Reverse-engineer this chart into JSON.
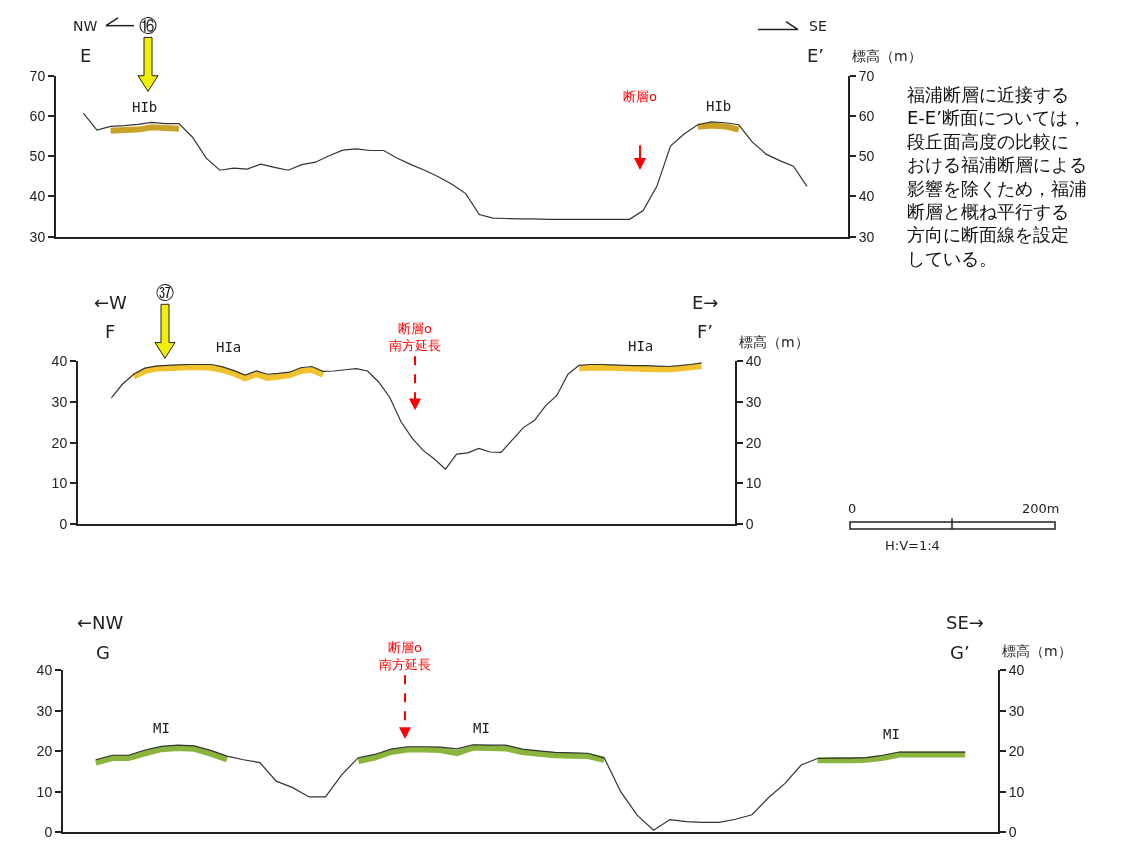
{
  "chart_data": [
    {
      "type": "line",
      "categories": [
        null,
        null,
        null,
        null,
        null,
        null,
        null,
        null,
        null,
        null,
        null,
        null,
        null,
        null,
        null,
        null,
        null,
        null,
        null,
        null,
        null,
        null,
        null,
        null,
        null,
        null,
        null,
        null,
        null,
        null,
        null,
        null,
        null,
        null,
        null,
        null,
        null,
        null,
        null,
        null,
        null,
        null,
        null,
        null,
        null,
        null,
        null,
        null,
        null,
        null,
        null,
        null,
        null,
        null,
        null,
        null,
        null,
        null,
        null
      ],
      "series": [
        {
          "color": "#333333",
          "values": [
            null,
            null,
            60.7,
            56.5,
            57.4,
            57.6,
            57.9,
            58.4,
            58.1,
            58.1,
            54.7,
            49.5,
            46.5,
            47.0,
            46.8,
            48.0,
            47.2,
            46.5,
            47.9,
            48.5,
            50.1,
            51.5,
            51.8,
            51.4,
            51.4,
            49.5,
            47.9,
            46.5,
            44.9,
            43.0,
            40.7,
            35.5,
            34.6,
            34.5,
            34.4,
            34.4,
            34.3,
            34.3,
            34.3,
            34.3,
            34.3,
            34.3,
            34.3,
            36.5,
            42.5,
            52.5,
            55.5,
            57.8,
            58.5,
            58.3,
            57.8,
            53.5,
            50.5,
            48.9,
            47.5,
            42.5,
            null,
            null,
            null
          ]
        },
        {
          "color": "#c9a227",
          "values": [
            null,
            null,
            null,
            null,
            56.3,
            56.5,
            56.6,
            57.2,
            57.0,
            56.8,
            null,
            null,
            null,
            null,
            null,
            null,
            null,
            null,
            null,
            null,
            null,
            null,
            null,
            null,
            null,
            null,
            null,
            null,
            null,
            null,
            null,
            null,
            null,
            null,
            null,
            null,
            null,
            null,
            null,
            null,
            null,
            null,
            null,
            null,
            null,
            null,
            null,
            57.3,
            57.6,
            57.4,
            56.6,
            null,
            null,
            null,
            null,
            null,
            null,
            null,
            null
          ]
        }
      ],
      "ylim": [
        30,
        70
      ],
      "yticks": [
        30,
        40,
        50,
        60,
        70
      ],
      "y2lim": [
        30,
        70
      ],
      "y2ticks": [
        30,
        40,
        50,
        60,
        70
      ],
      "y2label": "標高（m）",
      "tick_labels": "y",
      "annotations": [
        "NW",
        "SE",
        "E",
        "E’",
        "⑯",
        "HIb",
        "HIb",
        "断層o",
        "福浦断層に近接するE-E’断面については，段丘面高度の比較における福浦断層による影響を除くため，福浦断層と概ね平行する方向に断面線を設定している。"
      ]
    },
    {
      "type": "line",
      "categories": [
        null,
        null,
        null,
        null,
        null,
        null,
        null,
        null,
        null,
        null,
        null,
        null,
        null,
        null,
        null,
        null,
        null,
        null,
        null,
        null,
        null,
        null,
        null,
        null,
        null,
        null,
        null,
        null,
        null,
        null,
        null,
        null,
        null,
        null,
        null,
        null,
        null,
        null,
        null,
        null,
        null,
        null,
        null,
        null,
        null,
        null,
        null,
        null,
        null,
        null,
        null,
        null,
        null,
        null,
        null,
        null,
        null,
        null,
        null,
        null
      ],
      "series": [
        {
          "color": "#333333",
          "values": [
            null,
            null,
            null,
            31.0,
            34.4,
            36.8,
            38.3,
            38.8,
            39.0,
            39.1,
            39.2,
            39.2,
            39.2,
            38.6,
            37.7,
            36.6,
            37.6,
            36.8,
            37.0,
            37.3,
            38.4,
            38.7,
            37.5,
            37.6,
            37.9,
            38.2,
            37.6,
            34.9,
            31.1,
            25.2,
            21.1,
            18.1,
            16.0,
            13.5,
            17.2,
            17.5,
            18.6,
            17.7,
            17.6,
            20.7,
            23.7,
            25.5,
            29.1,
            31.6,
            36.8,
            39.0,
            39.2,
            39.2,
            39.1,
            39.0,
            38.9,
            38.9,
            38.8,
            38.7,
            38.9,
            39.2,
            39.6,
            null,
            null,
            null
          ]
        },
        {
          "color": "#f2c12e",
          "values": [
            null,
            null,
            null,
            null,
            null,
            36.2,
            37.6,
            38.2,
            38.3,
            38.4,
            38.5,
            38.5,
            38.4,
            37.8,
            37.0,
            35.8,
            36.8,
            35.9,
            36.2,
            36.6,
            37.6,
            37.9,
            36.7,
            null,
            null,
            null,
            null,
            null,
            null,
            null,
            null,
            null,
            null,
            null,
            null,
            null,
            null,
            null,
            null,
            null,
            null,
            null,
            null,
            null,
            null,
            38.3,
            38.4,
            38.4,
            38.4,
            38.3,
            38.2,
            38.1,
            38.0,
            38.0,
            38.2,
            38.5,
            38.8,
            null,
            null,
            null
          ]
        }
      ],
      "ylim": [
        0,
        40
      ],
      "yticks": [
        0,
        10,
        20,
        30,
        40
      ],
      "y2lim": [
        0,
        40
      ],
      "y2ticks": [
        0,
        10,
        20,
        30,
        40
      ],
      "y2label": "標高（m）",
      "tick_labels": "y",
      "annotations": [
        "←W",
        "E→",
        "F",
        "F’",
        "㊲",
        "HIa",
        "HIa",
        "断層o\n南方延長",
        "0",
        "200m",
        "H:V=1:4"
      ]
    },
    {
      "type": "line",
      "categories": [
        null,
        null,
        null,
        null,
        null,
        null,
        null,
        null,
        null,
        null,
        null,
        null,
        null,
        null,
        null,
        null,
        null,
        null,
        null,
        null,
        null,
        null,
        null,
        null,
        null,
        null,
        null,
        null,
        null,
        null,
        null,
        null,
        null,
        null,
        null,
        null,
        null,
        null,
        null,
        null,
        null,
        null,
        null,
        null,
        null,
        null,
        null,
        null,
        null,
        null,
        null,
        null,
        null,
        null,
        null,
        null,
        null,
        null
      ],
      "series": [
        {
          "color": "#333333",
          "values": [
            null,
            null,
            17.9,
            19.0,
            19.0,
            20.3,
            21.2,
            21.5,
            21.3,
            20.2,
            18.8,
            17.9,
            17.2,
            12.6,
            11.0,
            8.7,
            8.7,
            14.2,
            18.4,
            19.2,
            20.5,
            21.1,
            21.1,
            21.0,
            20.6,
            21.6,
            21.5,
            21.5,
            20.5,
            20.1,
            19.7,
            19.6,
            19.5,
            18.3,
            10.0,
            4.2,
            0.5,
            3.1,
            2.6,
            2.4,
            2.4,
            3.2,
            4.3,
            8.5,
            12.0,
            16.6,
            18.2,
            18.3,
            18.3,
            18.4,
            19.0,
            19.8,
            19.8,
            19.8,
            19.8,
            19.8,
            null,
            null
          ]
        },
        {
          "color": "#8ab43c",
          "values": [
            null,
            null,
            17.2,
            18.3,
            18.3,
            19.5,
            20.5,
            20.8,
            20.6,
            19.4,
            18.0,
            null,
            null,
            null,
            null,
            null,
            null,
            null,
            17.6,
            18.4,
            19.8,
            20.4,
            20.4,
            20.3,
            19.5,
            20.9,
            20.8,
            20.7,
            19.8,
            19.4,
            19.0,
            18.9,
            18.8,
            17.9,
            null,
            null,
            null,
            null,
            null,
            null,
            null,
            null,
            null,
            null,
            null,
            null,
            17.8,
            17.8,
            17.8,
            17.9,
            18.4,
            19.2,
            19.2,
            19.2,
            19.2,
            19.2,
            null,
            null
          ]
        }
      ],
      "ylim": [
        0,
        40
      ],
      "yticks": [
        0,
        10,
        20,
        30,
        40
      ],
      "y2lim": [
        0,
        40
      ],
      "y2ticks": [
        0,
        10,
        20,
        30,
        40
      ],
      "y2label": "標高（m）",
      "tick_labels": "y",
      "annotations": [
        "←NW",
        "SE→",
        "G",
        "G’",
        "断層o\n南方延長",
        "MI",
        "MI",
        "MI"
      ]
    }
  ]
}
